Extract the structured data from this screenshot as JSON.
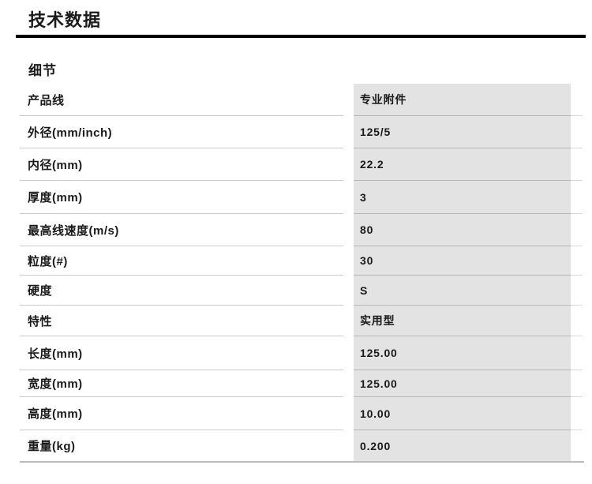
{
  "page": {
    "title": "技术数据",
    "section_heading": "细节"
  },
  "spec_table": {
    "rows": [
      {
        "label": "产品线",
        "value": "专业附件"
      },
      {
        "label": "外径(mm/inch)",
        "value": "125/5"
      },
      {
        "label": "内径(mm)",
        "value": "22.2"
      },
      {
        "label": "厚度(mm)",
        "value": "3"
      },
      {
        "label": "最高线速度(m/s)",
        "value": "80"
      },
      {
        "label": "粒度(#)",
        "value": "30"
      },
      {
        "label": "硬度",
        "value": "S"
      },
      {
        "label": "特性",
        "value": "实用型"
      },
      {
        "label": "长度(mm)",
        "value": "125.00"
      },
      {
        "label": "宽度(mm)",
        "value": "125.00"
      },
      {
        "label": "高度(mm)",
        "value": "10.00"
      },
      {
        "label": "重量(kg)",
        "value": "0.200"
      }
    ]
  },
  "colors": {
    "text": "#1a1a1a",
    "title_rule": "#000000",
    "value_column_bg": "#e3e3e3",
    "row_divider": "#cbcbcb",
    "value_divider": "#b7b7b7",
    "table_bottom_rule": "#bcbcbc"
  }
}
